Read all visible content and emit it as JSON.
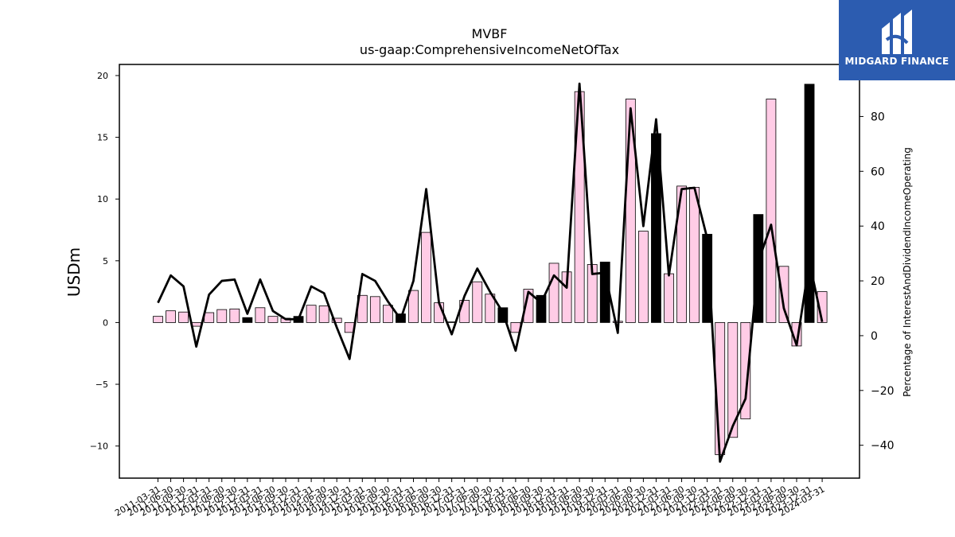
{
  "chart_data": {
    "type": "bar",
    "title": "MVBF",
    "subtitle": "us-gaap:ComprehensiveIncomeNetOfTax",
    "ylabel": "USDm",
    "y2label": "Percentage of InterestAndDividendIncomeOperating",
    "ylim": [
      -12.6,
      20.9
    ],
    "y2lim": [
      -52,
      99
    ],
    "yticks": [
      -10,
      -5,
      0,
      5,
      10,
      15,
      20
    ],
    "y2ticks": [
      -40,
      -20,
      0,
      20,
      40,
      60,
      80
    ],
    "categories": [
      "2011-03-31",
      "2011-06-30",
      "2011-09-30",
      "2011-12-31",
      "2012-03-31",
      "2012-06-30",
      "2012-09-30",
      "2012-12-31",
      "2013-03-31",
      "2013-06-30",
      "2013-09-30",
      "2013-12-31",
      "2014-03-31",
      "2014-06-30",
      "2014-09-30",
      "2014-12-31",
      "2015-03-31",
      "2015-06-30",
      "2015-09-30",
      "2015-12-31",
      "2016-03-31",
      "2016-06-30",
      "2016-09-30",
      "2016-12-31",
      "2017-03-31",
      "2017-06-30",
      "2017-09-30",
      "2017-12-31",
      "2018-03-31",
      "2018-06-30",
      "2018-09-30",
      "2018-12-31",
      "2019-03-31",
      "2019-06-30",
      "2019-09-30",
      "2019-12-31",
      "2020-03-31",
      "2020-06-30",
      "2020-09-30",
      "2020-12-31",
      "2021-03-31",
      "2021-06-30",
      "2021-09-30",
      "2021-12-31",
      "2022-03-31",
      "2022-06-30",
      "2022-09-30",
      "2022-12-31",
      "2023-03-31",
      "2023-06-30",
      "2023-09-30",
      "2023-12-31",
      "2024-03-31"
    ],
    "series": [
      {
        "type": "bar",
        "axis": "left",
        "values": [
          0.5,
          0.95,
          0.85,
          -0.3,
          0.8,
          1.05,
          1.1,
          0.4,
          1.2,
          0.5,
          0.35,
          0.5,
          1.4,
          1.35,
          0.35,
          -0.8,
          2.2,
          2.1,
          1.4,
          0.7,
          2.6,
          7.3,
          1.6,
          0.05,
          1.8,
          3.3,
          2.3,
          1.2,
          -0.8,
          2.7,
          2.2,
          4.8,
          4.1,
          18.7,
          4.7,
          4.9,
          0.1,
          18.1,
          7.4,
          15.3,
          3.95,
          11.05,
          10.95,
          7.15,
          -10.7,
          -9.3,
          -7.8,
          8.75,
          18.1,
          4.55,
          -1.9,
          19.3,
          2.5
        ],
        "highlighted": [
          7,
          11,
          19,
          27,
          30,
          35,
          39,
          43,
          47,
          51
        ],
        "colors": {
          "default": "#ffcce6",
          "highlight": "#000000",
          "edge": "#000000"
        }
      },
      {
        "type": "line",
        "axis": "right",
        "values": [
          12,
          22,
          18,
          -4,
          15,
          20,
          20.5,
          8,
          20.5,
          9,
          6,
          6,
          18,
          15.5,
          3,
          -8.5,
          22.5,
          20,
          12.5,
          6,
          20,
          53.5,
          12,
          0.5,
          14.5,
          24.5,
          16,
          8.5,
          -5.5,
          16,
          12,
          22,
          17.5,
          92,
          22.5,
          23,
          1,
          83,
          40,
          79,
          22,
          53.5,
          54,
          35.5,
          -46,
          -33,
          -23,
          27,
          40.5,
          10,
          -3.5,
          27,
          5
        ],
        "color": "#000000"
      }
    ]
  },
  "logo": {
    "text": "MIDGARD FINANCE"
  }
}
